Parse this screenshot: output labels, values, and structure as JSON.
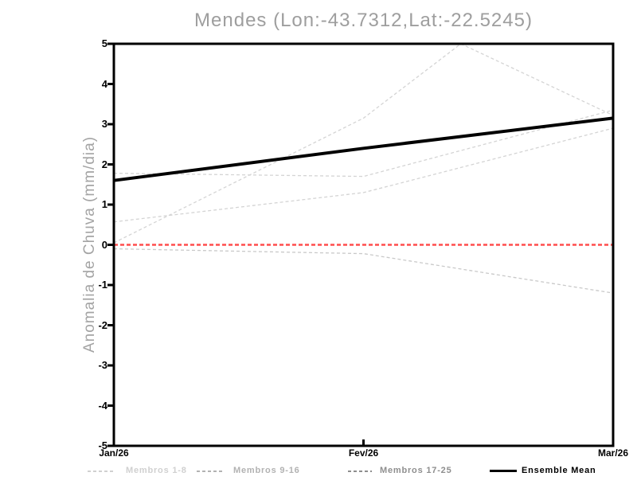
{
  "title": "Mendes (Lon:-43.7312,Lat:-22.5245)",
  "axes": {
    "ylabel": "Anomalia de Chuva (mm/dia)",
    "yticks": [
      5,
      4,
      3,
      2,
      1,
      0,
      -1,
      -2,
      -3,
      -4,
      -5
    ],
    "xticks": [
      "Jan/26",
      "Fev/26",
      "Mar/26"
    ],
    "frame_color": "#000000"
  },
  "legend": [
    {
      "label": "Membros 1-8",
      "color": "#d0d0d0",
      "style": "dashed"
    },
    {
      "label": "Membros 9-16",
      "color": "#b2b2b2",
      "style": "dashed"
    },
    {
      "label": "Membros 17-25",
      "color": "#8e8e8e",
      "style": "dashed"
    },
    {
      "label": "Ensemble Mean",
      "color": "#000000",
      "style": "solid"
    }
  ],
  "chart_data": {
    "type": "line",
    "title": "Mendes (Lon:-43.7312,Lat:-22.5245)",
    "xlabel": "",
    "ylabel": "Anomalia de Chuva (mm/dia)",
    "x_categories": [
      "Jan/26",
      "Fev/26",
      "Mar/26"
    ],
    "x_range": [
      0,
      2
    ],
    "ylim": [
      -5,
      5
    ],
    "grid": false,
    "legend_position": "bottom",
    "series": [
      {
        "name": "member-line-1",
        "group": "Membros",
        "color": "#d4d4d4",
        "dashed": true,
        "width": 1.3,
        "points": [
          [
            0,
            1.78
          ],
          [
            1,
            1.7
          ],
          [
            2,
            3.35
          ]
        ]
      },
      {
        "name": "member-line-2",
        "group": "Membros",
        "color": "#d4d4d4",
        "dashed": true,
        "width": 1.3,
        "points": [
          [
            0,
            0.57
          ],
          [
            1,
            1.3
          ],
          [
            2,
            2.9
          ]
        ]
      },
      {
        "name": "member-line-3",
        "group": "Membros",
        "color": "#d4d4d4",
        "dashed": true,
        "width": 1.3,
        "points": [
          [
            0,
            0.05
          ],
          [
            1,
            3.15
          ],
          [
            1.39,
            5.0
          ],
          [
            2,
            3.22
          ]
        ]
      },
      {
        "name": "member-line-4",
        "group": "Membros",
        "color": "#c9c9c9",
        "dashed": true,
        "width": 1.3,
        "points": [
          [
            0,
            -0.1
          ],
          [
            1,
            -0.22
          ],
          [
            2,
            -1.2
          ]
        ]
      },
      {
        "name": "zero-anomaly-line",
        "group": "reference",
        "color": "#ff4d4d",
        "dashed": true,
        "width": 2.6,
        "points": [
          [
            0,
            0
          ],
          [
            2,
            0
          ]
        ]
      },
      {
        "name": "ensemble-mean",
        "group": "Ensemble Mean",
        "color": "#000000",
        "dashed": false,
        "width": 4,
        "points": [
          [
            0,
            1.6
          ],
          [
            1,
            2.4
          ],
          [
            2,
            3.15
          ]
        ]
      }
    ]
  }
}
